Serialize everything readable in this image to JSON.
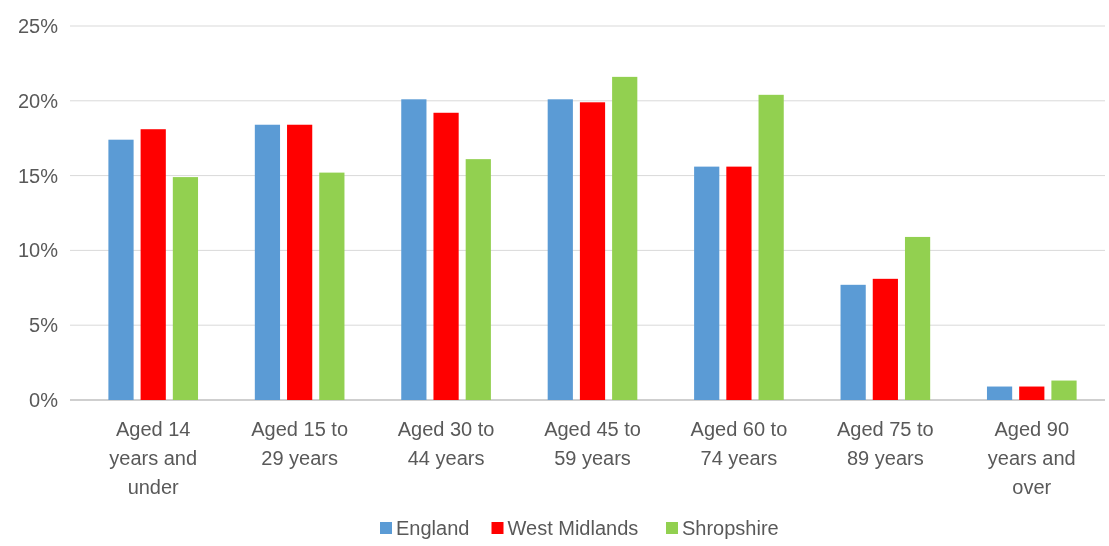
{
  "chart_data": {
    "type": "bar",
    "categories": [
      "Aged 14 years and under",
      "Aged 15 to 29 years",
      "Aged 30 to 44 years",
      "Aged 45 to 59 years",
      "Aged 60 to 74 years",
      "Aged 75 to 89 years",
      "Aged 90 years and over"
    ],
    "series": [
      {
        "name": "England",
        "color": "#5b9bd5",
        "values": [
          17.4,
          18.4,
          20.1,
          20.1,
          15.6,
          7.7,
          0.9
        ]
      },
      {
        "name": "West Midlands",
        "color": "#ff0000",
        "values": [
          18.1,
          18.4,
          19.2,
          19.9,
          15.6,
          8.1,
          0.9
        ]
      },
      {
        "name": "Shropshire",
        "color": "#92d050",
        "values": [
          14.9,
          15.2,
          16.1,
          21.6,
          20.4,
          10.9,
          1.3
        ]
      }
    ],
    "ylim": [
      0,
      25
    ],
    "yticks": [
      {
        "value": 0,
        "label": "0%"
      },
      {
        "value": 5,
        "label": "5%"
      },
      {
        "value": 10,
        "label": "10%"
      },
      {
        "value": 15,
        "label": "15%"
      },
      {
        "value": 20,
        "label": "20%"
      },
      {
        "value": 25,
        "label": "25%"
      }
    ],
    "grid": "y",
    "legend": "bottom"
  }
}
